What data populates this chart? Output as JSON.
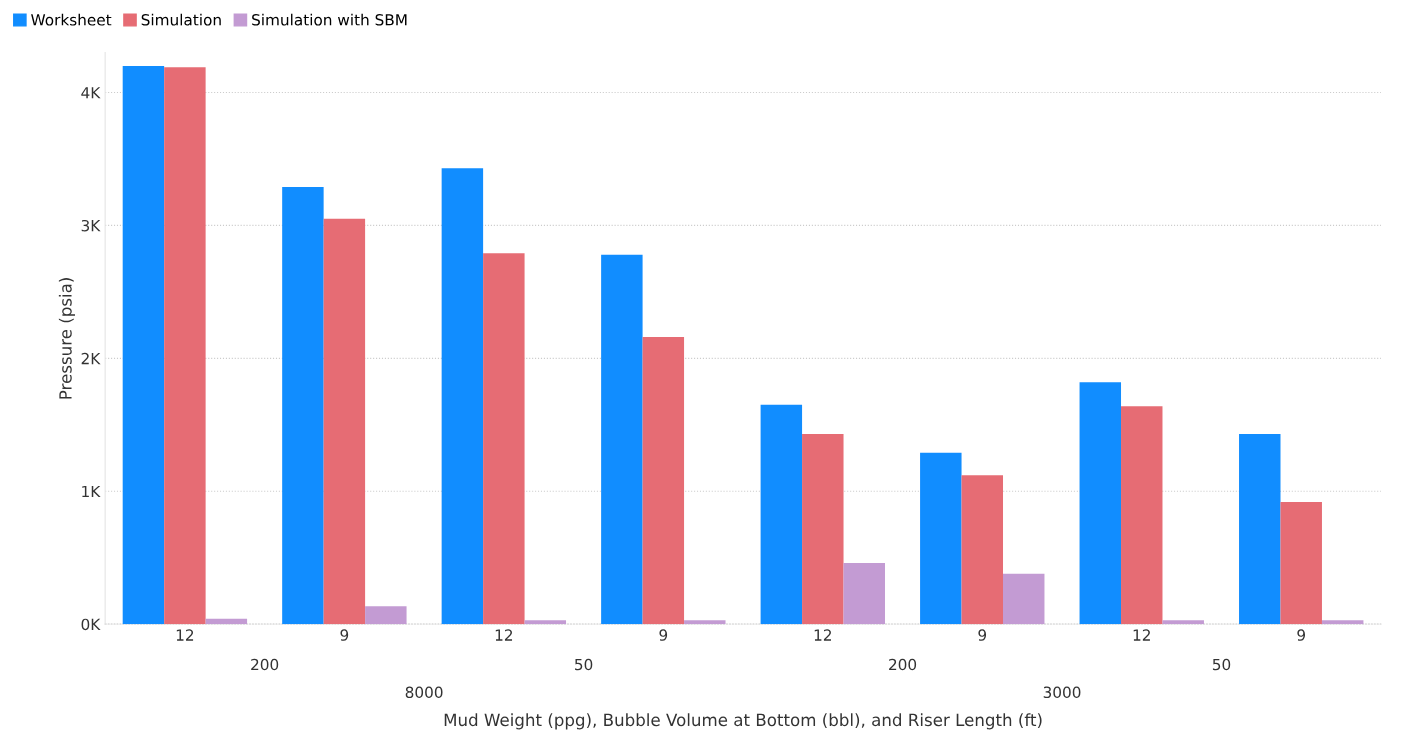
{
  "chart_data": {
    "type": "bar",
    "xlabel": "Mud Weight (ppg), Bubble Volume at Bottom (bbl), and Riser Length (ft)",
    "ylabel": "Pressure (psia)",
    "categories": [
      "12",
      "9",
      "12",
      "9",
      "12",
      "9",
      "12",
      "9"
    ],
    "annotations": [
      "200",
      "50",
      "200",
      "50",
      "8000",
      "3000"
    ],
    "series": [
      {
        "name": "Worksheet",
        "color": "#118dff",
        "values": [
          4200,
          3290,
          3430,
          2780,
          1650,
          1290,
          1820,
          1430
        ]
      },
      {
        "name": "Simulation",
        "color": "#e66c74",
        "values": [
          4190,
          3050,
          2790,
          2160,
          1430,
          1120,
          1640,
          920
        ]
      },
      {
        "name": "Simulation with SBM",
        "color": "#c39bd3",
        "values": [
          40,
          135,
          30,
          30,
          460,
          380,
          30,
          30
        ]
      }
    ],
    "ylim": [
      0,
      4300
    ],
    "yticks": [
      {
        "value": 0,
        "label": "0K"
      },
      {
        "value": 1000,
        "label": "1K"
      },
      {
        "value": 2000,
        "label": "2K"
      },
      {
        "value": 3000,
        "label": "3K"
      },
      {
        "value": 4000,
        "label": "4K"
      }
    ],
    "grid": "y",
    "legend": "top left"
  }
}
